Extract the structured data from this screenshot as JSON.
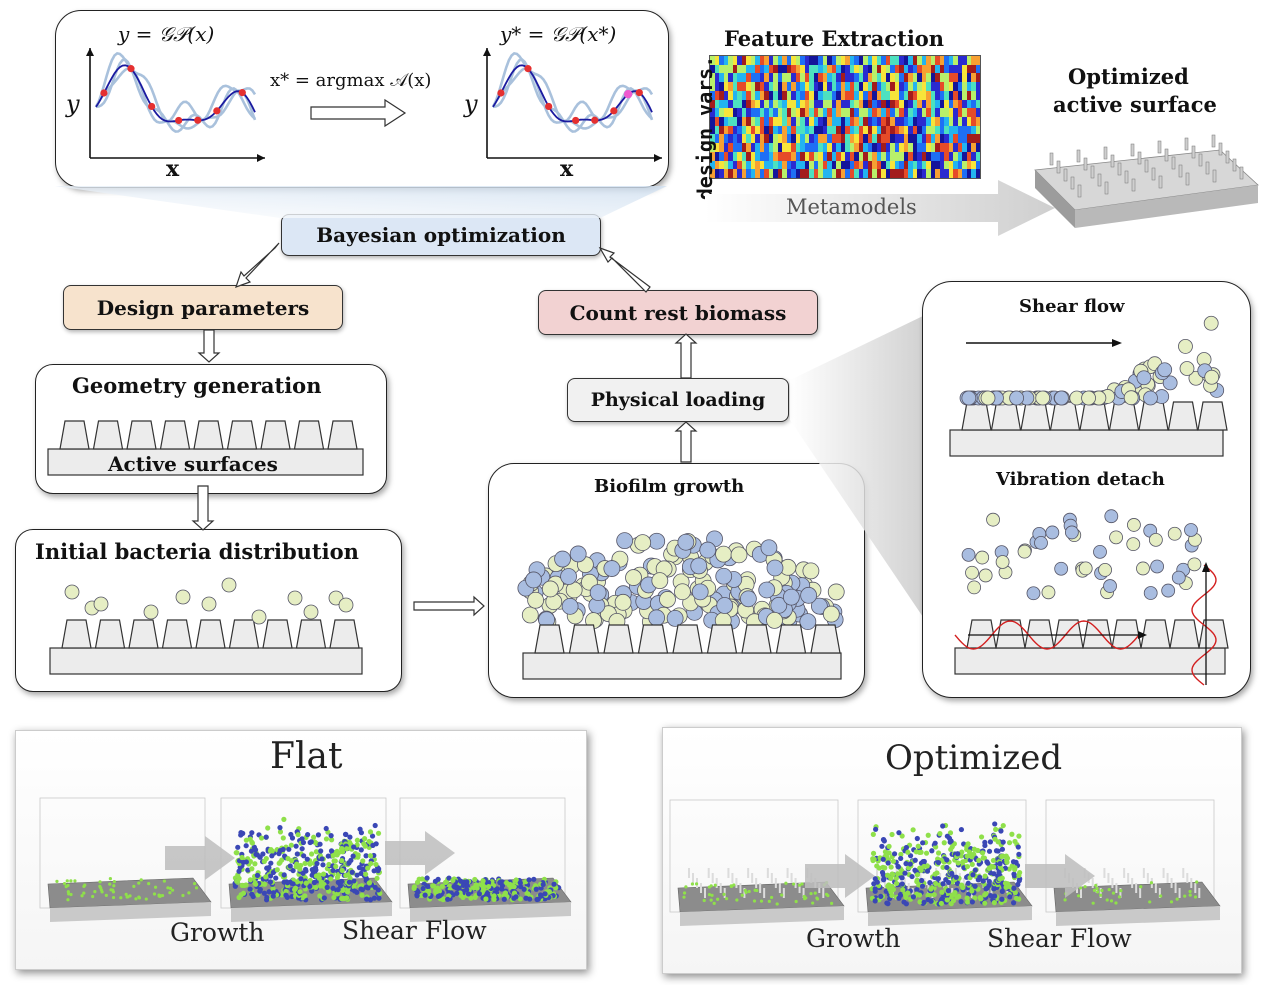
{
  "gp": {
    "left_eq": "y = 𝒢𝒫(x)",
    "right_eq": "y* = 𝒢𝒫(x*)",
    "acq_eq": "x* = argmax 𝒜(x)",
    "y_label": "y",
    "x_label": "x"
  },
  "features": {
    "title": "Feature Extraction",
    "side_label": "design vars.",
    "metamodels": "Metamodels"
  },
  "optimized_surface": {
    "line1": "Optimized",
    "line2": "active surface"
  },
  "flow": {
    "bayesian": "Bayesian optimization",
    "design_params": "Design parameters",
    "count_biomass": "Count rest biomass",
    "geometry_title": "Geometry generation",
    "active_surfaces": "Active surfaces",
    "initial_bacteria": "Initial bacteria distribution",
    "physical_loading": "Physical loading",
    "biofilm_growth": "Biofilm growth",
    "shear_flow": "Shear flow",
    "vibration_detach": "Vibration detach"
  },
  "bottom": {
    "flat_title": "Flat",
    "optimized_title": "Optimized",
    "growth": "Growth",
    "shear_flow": "Shear Flow"
  },
  "colors": {
    "gp_curve": "#a9c1dc",
    "mean_curve": "#1a1aa0",
    "sample_point": "#e53030",
    "bacteria_yellow": "#e6eec4",
    "bacteria_blue": "#a9bde0",
    "bayes_box": "#dbe6f4",
    "design_box": "#f7e4cf",
    "count_box": "#f2d3d3",
    "green_cell": "#8fe04a",
    "blue_cell": "#3a47b5"
  }
}
